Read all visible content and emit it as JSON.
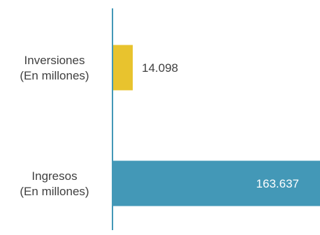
{
  "chart_data": {
    "type": "bar",
    "orientation": "horizontal",
    "categories": [
      [
        "Inversiones",
        "(En millones)"
      ],
      [
        "Ingresos",
        "(En millones)"
      ]
    ],
    "values": [
      14098,
      163637
    ],
    "data_labels": [
      "14.098",
      "163.637"
    ],
    "bar_colors": [
      "#E8C32E",
      "#4398B7"
    ],
    "axis_color": "#4398B7",
    "xlim": [
      0,
      163637
    ],
    "grid": false,
    "legend": "none"
  }
}
